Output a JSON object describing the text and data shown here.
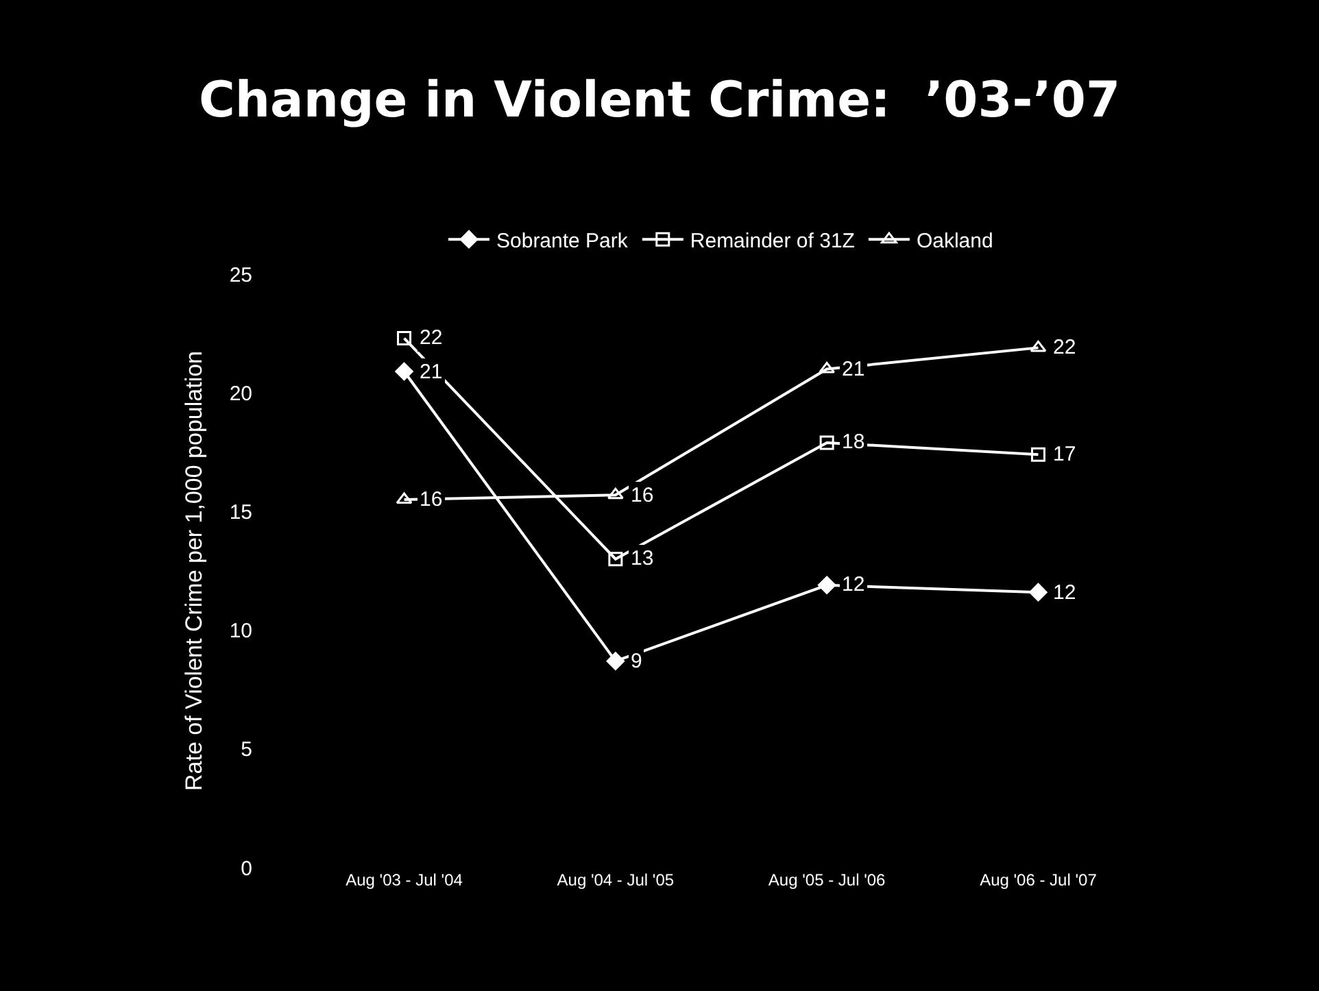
{
  "chart_data": {
    "type": "line",
    "title": "Change in Violent Crime:  ’03-’07",
    "ylabel": "Rate of Violent Crime per 1,000 population",
    "categories": [
      "Aug '03 - Jul '04",
      "Aug '04 - Jul '05",
      "Aug '05 - Jul '06",
      "Aug '06 - Jul '07"
    ],
    "series": [
      {
        "name": "Sobrante Park",
        "color": "#ffffff",
        "marker": "diamond",
        "values": [
          20.9,
          8.7,
          11.9,
          11.6
        ],
        "value_labels": [
          "21",
          "9",
          "12",
          "12"
        ]
      },
      {
        "name": "Remainder of 31Z",
        "color": "#ffffff",
        "marker": "square",
        "values": [
          22.3,
          13.0,
          17.9,
          17.4
        ],
        "value_labels": [
          "22",
          "13",
          "18",
          "17"
        ]
      },
      {
        "name": "Oakland",
        "color": "#ffffff",
        "marker": "triangle",
        "values": [
          15.5,
          15.7,
          21.0,
          21.9
        ],
        "value_labels": [
          "16",
          "16",
          "21",
          "22"
        ]
      }
    ],
    "ylim": [
      0,
      25
    ],
    "yticks": [
      0,
      5,
      10,
      15,
      20,
      25
    ],
    "grid": false,
    "legend": "top",
    "line_style": "solid"
  }
}
